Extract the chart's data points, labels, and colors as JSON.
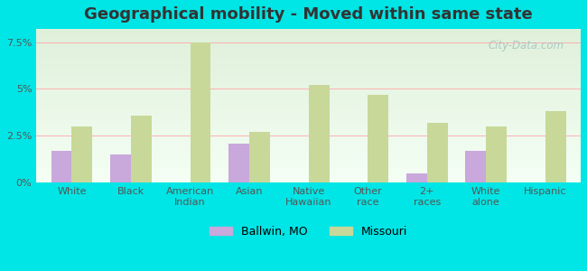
{
  "title": "Geographical mobility - Moved within same state",
  "categories": [
    "White",
    "Black",
    "American\nIndian",
    "Asian",
    "Native\nHawaiian",
    "Other\nrace",
    "2+\nraces",
    "White\nalone",
    "Hispanic"
  ],
  "ballwin_values": [
    1.7,
    1.5,
    0.0,
    2.1,
    0.0,
    0.0,
    0.5,
    1.7,
    0.0
  ],
  "missouri_values": [
    3.0,
    3.6,
    7.5,
    2.7,
    5.2,
    4.7,
    3.2,
    3.0,
    3.8
  ],
  "ballwin_color": "#c9a8dc",
  "missouri_color": "#c8d898",
  "background_color": "#00e5e5",
  "grad_top": "#dff0da",
  "grad_bottom": "#f5fff5",
  "ylim": [
    0,
    8.2
  ],
  "yticks": [
    0,
    2.5,
    5.0,
    7.5
  ],
  "ytick_labels": [
    "0%",
    "2.5%",
    "5%",
    "7.5%"
  ],
  "legend_ballwin": "Ballwin, MO",
  "legend_missouri": "Missouri",
  "bar_width": 0.35,
  "watermark": "City-Data.com"
}
